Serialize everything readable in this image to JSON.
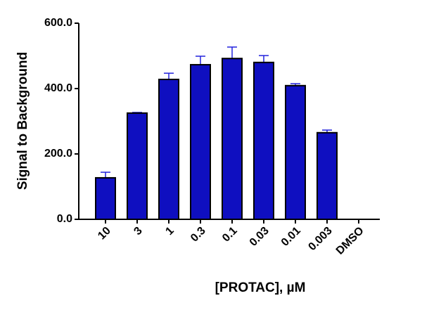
{
  "chart_data": {
    "type": "bar",
    "y_label": "Signal to Background",
    "x_label": "[PROTAC], µM",
    "categories": [
      "10",
      "3",
      "1",
      "0.3",
      "0.1",
      "0.03",
      "0.01",
      "0.003",
      "DMSO"
    ],
    "series": [
      {
        "color": "#0f0fc0",
        "error_color": "#2222dd",
        "values": [
          127,
          325,
          428,
          473,
          492,
          480,
          409,
          265,
          null
        ],
        "errors": [
          17,
          2,
          19,
          26,
          35,
          21,
          6,
          8,
          null
        ]
      }
    ],
    "ylim": [
      0,
      600
    ],
    "yticks": [
      {
        "value": 0,
        "label": "0.0"
      },
      {
        "value": 200,
        "label": "200.0"
      },
      {
        "value": 400,
        "label": "400.0"
      },
      {
        "value": 600,
        "label": "600.0"
      }
    ]
  }
}
